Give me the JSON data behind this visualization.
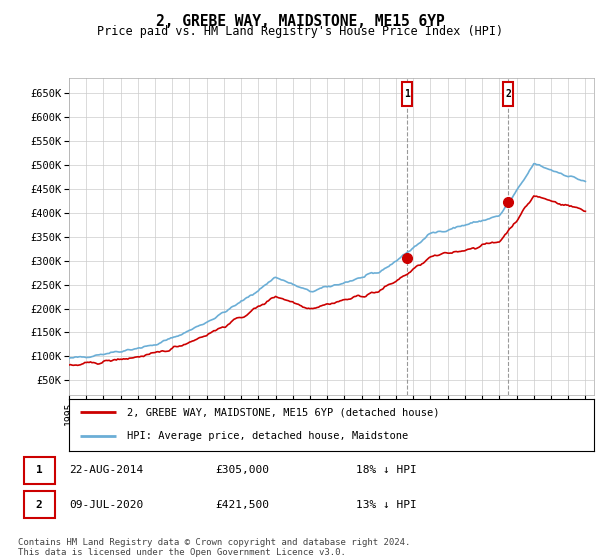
{
  "title": "2, GREBE WAY, MAIDSTONE, ME15 6YP",
  "subtitle": "Price paid vs. HM Land Registry's House Price Index (HPI)",
  "ylabel_ticks": [
    "£50K",
    "£100K",
    "£150K",
    "£200K",
    "£250K",
    "£300K",
    "£350K",
    "£400K",
    "£450K",
    "£500K",
    "£550K",
    "£600K",
    "£650K"
  ],
  "ytick_values": [
    50000,
    100000,
    150000,
    200000,
    250000,
    300000,
    350000,
    400000,
    450000,
    500000,
    550000,
    600000,
    650000
  ],
  "ylim": [
    20000,
    680000
  ],
  "hpi_color": "#6baed6",
  "price_color": "#cc0000",
  "grid_color": "#cccccc",
  "bg_color": "#ffffff",
  "purchase1_date": "22-AUG-2014",
  "purchase1_price": 305000,
  "purchase1_label": "18% ↓ HPI",
  "purchase2_date": "09-JUL-2020",
  "purchase2_price": 421500,
  "purchase2_label": "13% ↓ HPI",
  "legend_line1": "2, GREBE WAY, MAIDSTONE, ME15 6YP (detached house)",
  "legend_line2": "HPI: Average price, detached house, Maidstone",
  "footer": "Contains HM Land Registry data © Crown copyright and database right 2024.\nThis data is licensed under the Open Government Licence v3.0.",
  "p1_year": 2014.64,
  "p2_year": 2020.52,
  "xmin": 1995,
  "xmax": 2025.5
}
